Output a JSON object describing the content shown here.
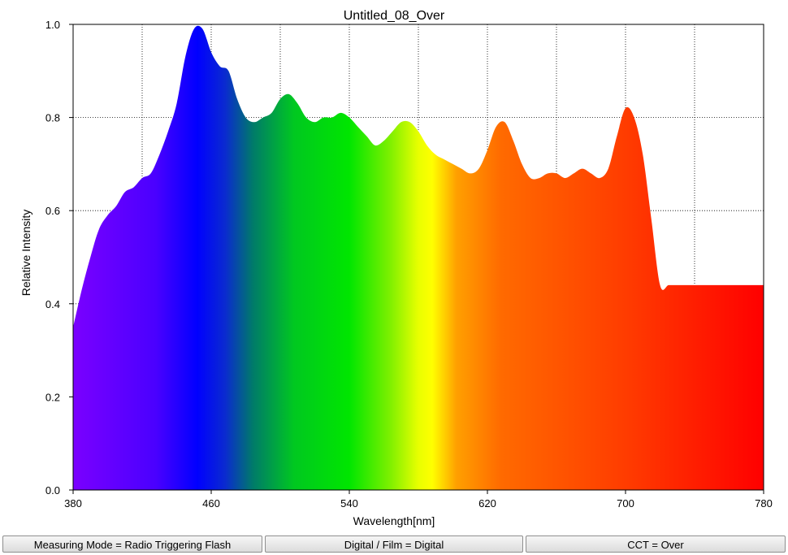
{
  "chart_data": {
    "type": "area",
    "title": "Untitled_08_Over",
    "xlabel": "Wavelength[nm]",
    "ylabel": "Relative Intensity",
    "xlim": [
      380,
      780
    ],
    "ylim": [
      0,
      1.0
    ],
    "xticks": [
      380,
      460,
      540,
      620,
      700,
      780
    ],
    "xtick_labels": [
      "380",
      "460",
      "540",
      "620",
      "700",
      "780"
    ],
    "yticks": [
      0,
      0.2,
      0.4,
      0.6,
      0.8,
      1.0
    ],
    "ytick_labels": [
      "0.0",
      "0.2",
      "0.4",
      "0.6",
      "0.8",
      "1.0"
    ],
    "grid": true,
    "fill": "visible-spectrum gradient",
    "x": [
      380,
      385,
      390,
      395,
      400,
      405,
      410,
      415,
      420,
      425,
      430,
      435,
      440,
      445,
      450,
      455,
      460,
      465,
      470,
      475,
      480,
      485,
      490,
      495,
      500,
      505,
      510,
      515,
      520,
      525,
      530,
      535,
      540,
      545,
      550,
      555,
      560,
      565,
      570,
      575,
      580,
      585,
      590,
      595,
      600,
      605,
      610,
      615,
      620,
      625,
      630,
      635,
      640,
      645,
      650,
      655,
      660,
      665,
      670,
      675,
      680,
      685,
      690,
      695,
      700,
      705,
      710,
      715,
      720,
      725,
      730,
      735,
      740,
      745,
      750,
      755,
      760,
      765,
      770,
      775,
      780
    ],
    "values": [
      0.35,
      0.43,
      0.5,
      0.56,
      0.59,
      0.61,
      0.64,
      0.65,
      0.67,
      0.68,
      0.72,
      0.77,
      0.83,
      0.93,
      0.99,
      0.99,
      0.94,
      0.91,
      0.9,
      0.84,
      0.8,
      0.79,
      0.8,
      0.81,
      0.84,
      0.85,
      0.83,
      0.8,
      0.79,
      0.8,
      0.8,
      0.81,
      0.8,
      0.78,
      0.76,
      0.74,
      0.75,
      0.77,
      0.79,
      0.79,
      0.77,
      0.74,
      0.72,
      0.71,
      0.7,
      0.69,
      0.68,
      0.69,
      0.73,
      0.78,
      0.79,
      0.75,
      0.7,
      0.67,
      0.67,
      0.68,
      0.68,
      0.67,
      0.68,
      0.69,
      0.68,
      0.67,
      0.69,
      0.76,
      0.82,
      0.8,
      0.72,
      0.58,
      0.44,
      0.44,
      0.44,
      0.44,
      0.44,
      0.44,
      0.44,
      0.44,
      0.44,
      0.44,
      0.44,
      0.44,
      0.44
    ]
  },
  "status": {
    "measuring_mode": "Measuring Mode = Radio Triggering Flash",
    "digital_film": "Digital / Film = Digital",
    "cct": "CCT = Over"
  }
}
